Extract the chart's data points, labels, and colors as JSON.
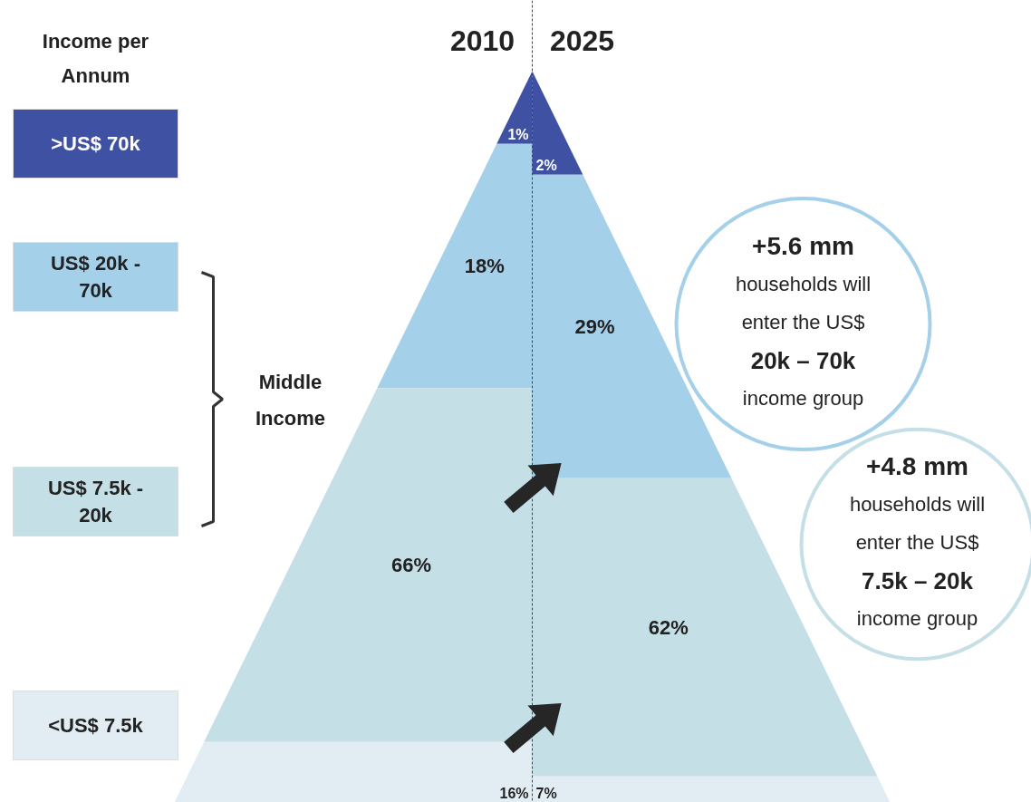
{
  "chart_data": {
    "type": "other",
    "categories": [
      "2010",
      "2025"
    ],
    "series": [
      {
        "name": ">US$ 70k",
        "color": "#3f51a3",
        "values": [
          1,
          2
        ],
        "value_labels": [
          "1%",
          "2%"
        ]
      },
      {
        "name": "US$ 20k - 70k",
        "color": "#a5d0ea",
        "values": [
          18,
          29
        ],
        "value_labels": [
          "18%",
          "29%"
        ]
      },
      {
        "name": "US$ 7.5k - 20k",
        "color": "#c5dfe6",
        "values": [
          66,
          62
        ],
        "value_labels": [
          "66%",
          "62%"
        ]
      },
      {
        "name": "<US$ 7.5k",
        "color": "#e2edf3",
        "values": [
          16,
          7
        ],
        "value_labels": [
          "16%",
          "7%"
        ]
      }
    ],
    "legend": "left",
    "annotations": [
      "Income per Annum",
      "Middle Income",
      "+5.6 mm households will enter the US$ 20k – 70k income group",
      "+4.8 mm households will enter the US$ 7.5k – 20k income group"
    ]
  }
}
